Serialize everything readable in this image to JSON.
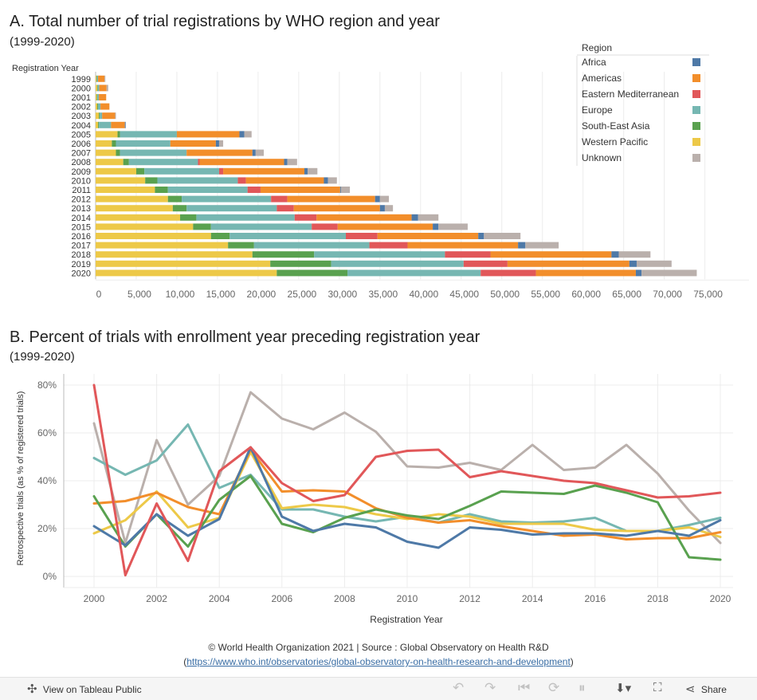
{
  "chart_a_title": "A. Total number of trial registrations by WHO region and year",
  "chart_a_subtitle": "(1999-2020)",
  "chart_b_title": "B. Percent of trials with enrollment year preceding registration year",
  "chart_b_subtitle": "(1999-2020)",
  "colors": {
    "Africa": "#4e79a7",
    "Americas": "#f28e2b",
    "Eastern Mediterranean": "#e15759",
    "Europe": "#76b7b2",
    "South-East Asia": "#59a14f",
    "Western Pacific": "#edc948",
    "Unknown": "#bab0ac"
  },
  "chart_data": [
    {
      "type": "bar",
      "orientation": "horizontal",
      "stacked": true,
      "ylabel": "Registration Year",
      "legend_title": "Region",
      "legend_position": "top-right",
      "categories": [
        "1999",
        "2000",
        "2001",
        "2002",
        "2003",
        "2004",
        "2005",
        "2006",
        "2007",
        "2008",
        "2009",
        "2010",
        "2011",
        "2012",
        "2013",
        "2014",
        "2015",
        "2016",
        "2017",
        "2018",
        "2019",
        "2020"
      ],
      "xticks": [
        "0",
        "5,000",
        "10,000",
        "15,000",
        "20,000",
        "25,000",
        "30,000",
        "35,000",
        "40,000",
        "45,000",
        "50,000",
        "55,000",
        "60,000",
        "65,000",
        "70,000",
        "75,000"
      ],
      "xlim": [
        0,
        77000
      ],
      "series": [
        {
          "name": "Western Pacific",
          "values": [
            100,
            200,
            150,
            200,
            400,
            300,
            2700,
            2000,
            2500,
            3400,
            5000,
            6100,
            7300,
            8900,
            9500,
            10400,
            12000,
            14200,
            16300,
            19300,
            21500,
            22300
          ]
        },
        {
          "name": "South-East Asia",
          "values": [
            50,
            50,
            50,
            100,
            100,
            100,
            300,
            500,
            500,
            700,
            1000,
            1500,
            1600,
            1700,
            1700,
            2000,
            2200,
            2300,
            3200,
            7600,
            7500,
            8700
          ]
        },
        {
          "name": "Europe",
          "values": [
            150,
            200,
            200,
            300,
            300,
            1500,
            7000,
            6700,
            8200,
            8500,
            9200,
            9900,
            9800,
            11000,
            11100,
            12100,
            12400,
            14300,
            14200,
            16100,
            16300,
            16400
          ]
        },
        {
          "name": "Eastern Mediterranean",
          "values": [
            0,
            0,
            0,
            0,
            0,
            0,
            0,
            0,
            0,
            200,
            500,
            1000,
            1600,
            2000,
            2100,
            2700,
            3200,
            3900,
            4700,
            5600,
            5400,
            6800
          ]
        },
        {
          "name": "Americas",
          "values": [
            800,
            900,
            900,
            1100,
            1600,
            1700,
            7700,
            5600,
            8100,
            10400,
            10000,
            9600,
            9800,
            10800,
            10600,
            11700,
            11700,
            12400,
            13600,
            14900,
            15000,
            12300
          ]
        },
        {
          "name": "Africa",
          "values": [
            0,
            0,
            0,
            0,
            0,
            100,
            600,
            400,
            400,
            400,
            400,
            500,
            100,
            600,
            600,
            800,
            700,
            700,
            900,
            900,
            900,
            700
          ]
        },
        {
          "name": "Unknown",
          "values": [
            100,
            200,
            0,
            0,
            100,
            0,
            900,
            500,
            1000,
            1200,
            1200,
            1100,
            1100,
            1100,
            1000,
            2500,
            3600,
            4500,
            4100,
            3900,
            4300,
            6800
          ]
        }
      ]
    },
    {
      "type": "line",
      "xlabel": "Registration Year",
      "ylabel": "Retrospective trials (as % of registered trials)",
      "x": [
        2000,
        2001,
        2002,
        2003,
        2004,
        2005,
        2006,
        2007,
        2008,
        2009,
        2010,
        2011,
        2012,
        2013,
        2014,
        2015,
        2016,
        2017,
        2018,
        2019,
        2020
      ],
      "xticks": [
        "2000",
        "2002",
        "2004",
        "2006",
        "2008",
        "2010",
        "2012",
        "2014",
        "2016",
        "2018",
        "2020"
      ],
      "yticks": [
        "0%",
        "20%",
        "40%",
        "60%",
        "80%"
      ],
      "xlim": [
        1999.6,
        2020.4
      ],
      "ylim": [
        -3,
        84
      ],
      "series": [
        {
          "name": "Africa",
          "values": [
            21,
            13,
            26,
            17,
            24,
            54,
            25,
            19,
            22,
            20.5,
            14.5,
            12,
            20.5,
            19.5,
            17.5,
            18,
            18,
            17,
            19,
            17,
            23.5
          ]
        },
        {
          "name": "Americas",
          "values": [
            30.5,
            31.5,
            35,
            29,
            26,
            53,
            35.5,
            36,
            35.5,
            28.5,
            24.5,
            22.5,
            23.5,
            21,
            19,
            17,
            17.5,
            15.5,
            16,
            16,
            18.5
          ]
        },
        {
          "name": "Eastern Mediterranean",
          "values": [
            80,
            0.5,
            30.5,
            6.5,
            44,
            54,
            39,
            31.5,
            34,
            50,
            52.5,
            53,
            41.5,
            44,
            42,
            40,
            39,
            36,
            33,
            33.5,
            35
          ]
        },
        {
          "name": "Europe",
          "values": [
            49.5,
            42.5,
            48.5,
            63.5,
            37,
            42.5,
            28,
            28,
            25,
            23,
            25,
            22.5,
            26,
            23,
            22.5,
            23,
            24.5,
            19,
            19,
            21.5,
            24.5
          ]
        },
        {
          "name": "South-East Asia",
          "values": [
            33.5,
            12.5,
            26,
            12.5,
            32,
            42,
            22,
            18.5,
            24.5,
            28,
            25.5,
            24,
            29.5,
            35.5,
            35,
            34.5,
            38,
            35,
            31,
            8,
            7
          ]
        },
        {
          "name": "Western Pacific",
          "values": [
            18,
            23.5,
            35.5,
            20.5,
            24.5,
            52,
            28.5,
            30,
            29,
            26,
            24,
            26,
            25,
            22,
            22,
            22,
            19.5,
            19,
            19,
            20.5,
            16.5
          ]
        },
        {
          "name": "Unknown",
          "values": [
            64,
            14,
            57,
            30,
            42,
            77,
            66,
            61.5,
            68.5,
            60.5,
            46,
            45.5,
            47.5,
            44.5,
            55,
            44.5,
            45.5,
            55,
            43,
            27.5,
            14
          ]
        }
      ]
    }
  ],
  "footer": {
    "line1": "© World Health Organization 2021 | Source : Global Observatory on Health R&D",
    "paren_open": "(",
    "link": "https://www.who.int/observatories/global-observatory-on-health-research-and-development",
    "paren_close": ")"
  },
  "toolbar": {
    "view_label": "View on Tableau Public",
    "share_label": "Share"
  }
}
